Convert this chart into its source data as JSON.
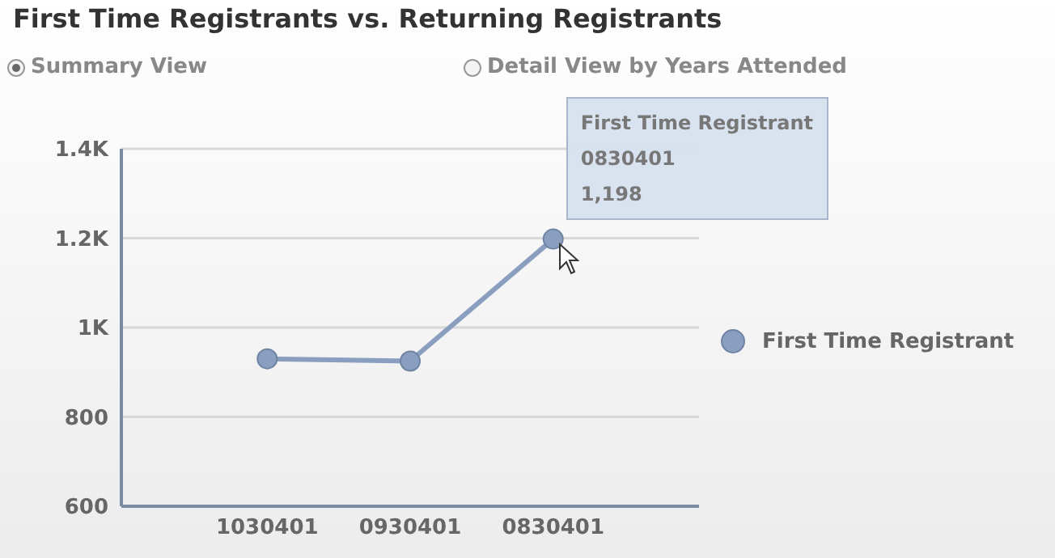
{
  "chart_data": {
    "type": "line",
    "title": "First Time Registrants vs. Returning Registrants",
    "categories": [
      "1030401",
      "0930401",
      "0830401"
    ],
    "series": [
      {
        "name": "First Time Registrant",
        "color": "#8a9fc0",
        "values": [
          930,
          925,
          1198
        ]
      }
    ],
    "ylim": [
      600,
      1400
    ],
    "yticks": [
      {
        "value": 600,
        "label": "600"
      },
      {
        "value": 800,
        "label": "800"
      },
      {
        "value": 1000,
        "label": "1K"
      },
      {
        "value": 1200,
        "label": "1.2K"
      },
      {
        "value": 1400,
        "label": "1.4K"
      }
    ],
    "grid": "y",
    "legend": "right",
    "marker": "circle",
    "line_style": "solid",
    "annotations": [
      "Summary View",
      "Detail View by Years Attended",
      {
        "text": "First Time Registrant\n0830401\n1,198",
        "x": "0830401",
        "y": 1198
      }
    ]
  }
}
